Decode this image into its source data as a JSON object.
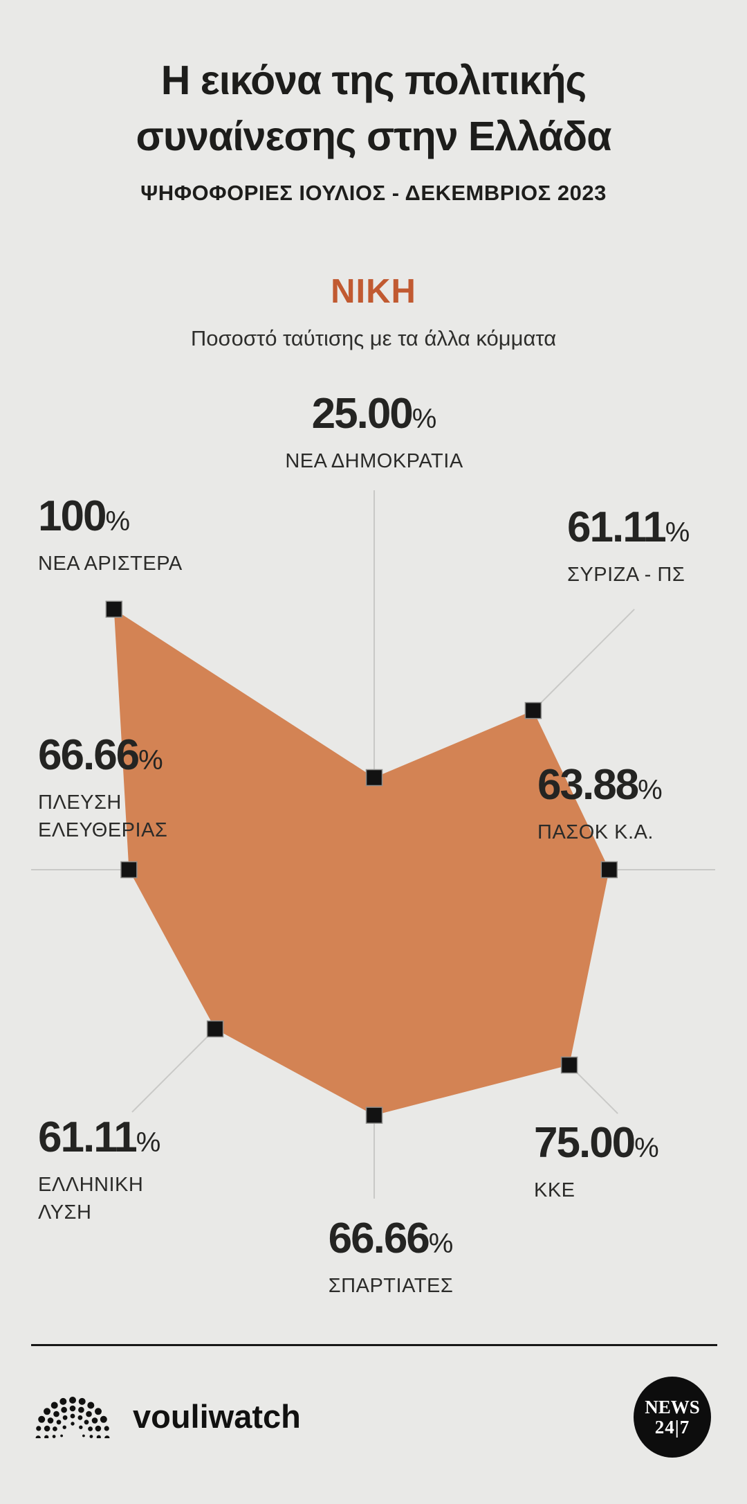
{
  "header": {
    "title_line1": "Η εικόνα της πολιτικής",
    "title_line2": "συναίνεσης στην Ελλάδα",
    "subtitle": "ΨΗΦΟΦΟΡΙΕΣ ΙΟΥΛΙΟΣ - ΔΕΚΕΜΒΡΙΟΣ 2023"
  },
  "chart_header": {
    "party": "ΝΙΚΗ",
    "subtitle": "Ποσοστό ταύτισης με τα άλλα κόμματα"
  },
  "chart_data": {
    "type": "radar",
    "title": "ΝΙΚΗ",
    "subtitle": "Ποσοστό ταύτισης με τα άλλα κόμματα",
    "unit": "%",
    "axis_range": [
      0,
      100
    ],
    "grid": "spokes-only",
    "legend": "none",
    "categories": [
      "ΝΕΑ ΔΗΜΟΚΡΑΤΙΑ",
      "ΣΥΡΙΖΑ - ΠΣ",
      "ΠΑΣΟΚ Κ.Α.",
      "ΚΚΕ",
      "ΣΠΑΡΤΙΑΤΕΣ",
      "ΕΛΛΗΝΙΚΗ ΛΥΣΗ",
      "ΠΛΕΥΣΗ ΕΛΕΥΘΕΡΙΑΣ",
      "ΝΕΑ ΑΡΙΣΤΕΡΑ"
    ],
    "category_display": [
      "ΝΕΑ ΔΗΜΟΚΡΑΤΙΑ",
      "ΣΥΡΙΖΑ - ΠΣ",
      "ΠΑΣΟΚ Κ.Α.",
      "ΚΚΕ",
      "ΣΠΑΡΤΙΑΤΕΣ",
      "ΕΛΛΗΝΙΚΗ\nΛΥΣΗ",
      "ΠΛΕΥΣΗ\nΕΛΕΥΘΕΡΙΑΣ",
      "ΝΕΑ ΑΡΙΣΤΕΡΑ"
    ],
    "values": [
      25.0,
      61.11,
      63.88,
      75.0,
      66.66,
      61.11,
      66.66,
      100
    ],
    "value_labels": [
      "25.00",
      "61.11",
      "63.88",
      "75.00",
      "66.66",
      "61.11",
      "66.66",
      "100"
    ],
    "percent_symbol": "%",
    "colors": {
      "fill": "#d38354",
      "axis_line": "#c9c9c7",
      "marker": "#121212",
      "marker_border": "#8e8e8c",
      "background": "#e9e9e7",
      "accent_title": "#c15a31"
    }
  },
  "footer": {
    "brand": "vouliwatch",
    "news_logo_line1": "NEWS",
    "news_logo_line2": "24|7"
  }
}
